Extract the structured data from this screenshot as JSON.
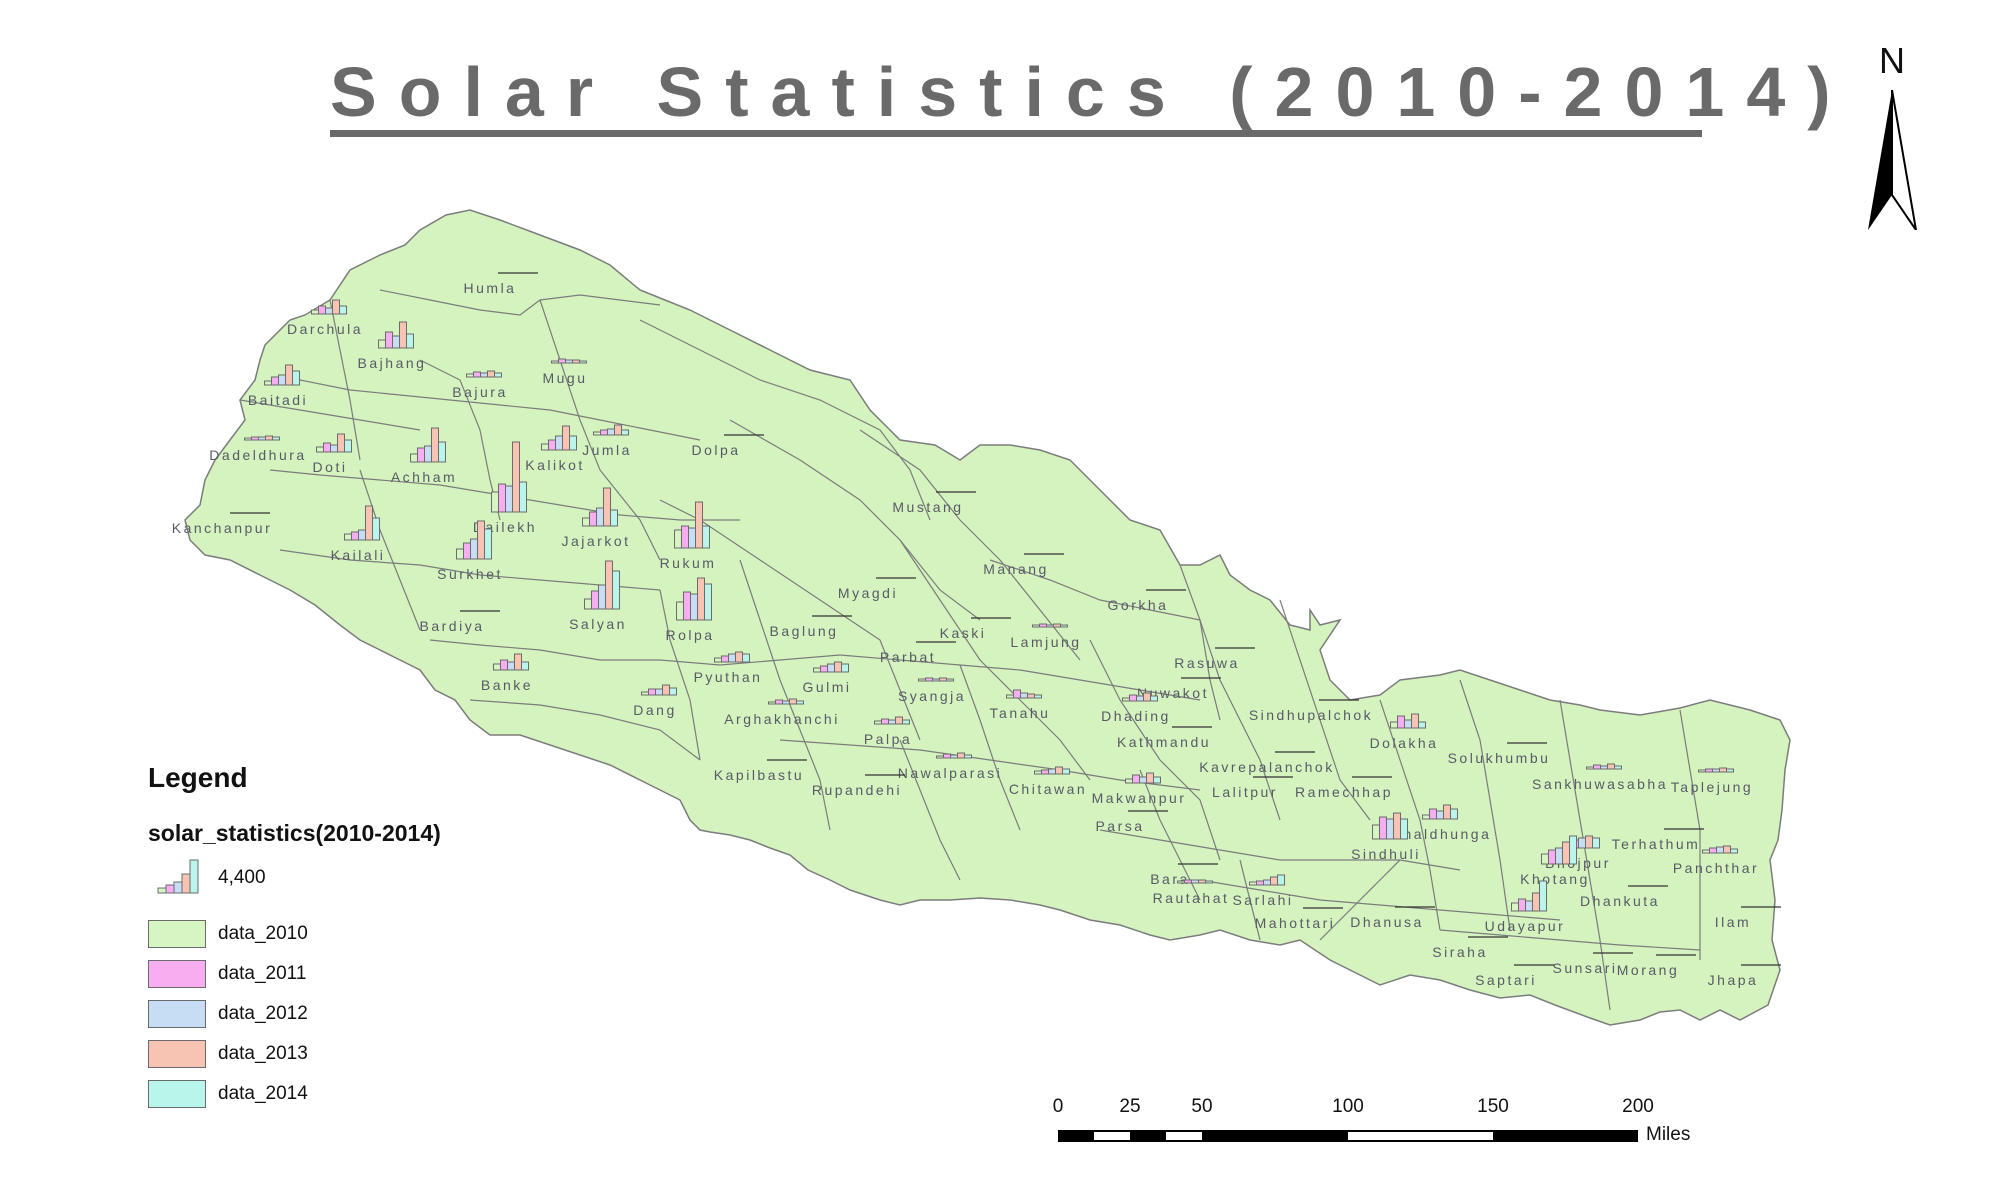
{
  "title": "Solar Statistics (2010-2014)",
  "north_arrow": {
    "label": "N",
    "icon": "north-arrow-icon"
  },
  "legend": {
    "title": "Legend",
    "subtitle": "solar_statistics(2010-2014)",
    "symbol_label": "4,400",
    "items": [
      {
        "label": "data_2010",
        "color": "#d6f5c3"
      },
      {
        "label": "data_2011",
        "color": "#f7aef1"
      },
      {
        "label": "data_2012",
        "color": "#c6ddf4"
      },
      {
        "label": "data_2013",
        "color": "#f7c4b3"
      },
      {
        "label": "data_2014",
        "color": "#b9f5ea"
      }
    ]
  },
  "scale": {
    "ticks": [
      "0",
      "25",
      "50",
      "100",
      "150",
      "200"
    ],
    "units": "Miles"
  },
  "colors": {
    "land": "#d4f3bf",
    "border": "#7c7c7c",
    "data_2010": "#d6f5c3",
    "data_2011": "#f7aef1",
    "data_2012": "#c6ddf4",
    "data_2013": "#f7c4b3",
    "data_2014": "#b9f5ea"
  },
  "districts": [
    "Humla",
    "Darchula",
    "Bajhang",
    "Mugu",
    "Baitadi",
    "Bajura",
    "Dolpa",
    "Jumla",
    "Dadeldhura",
    "Doti",
    "Achham",
    "Kalikot",
    "Kanchanpur",
    "Kailali",
    "Dailekh",
    "Jajarkot",
    "Rukum",
    "Mustang",
    "Surkhet",
    "Manang",
    "Myagdi",
    "Salyan",
    "Bardiya",
    "Rolpa",
    "Gorkha",
    "Baglung",
    "Kaski",
    "Lamjung",
    "Parbat",
    "Pyuthan",
    "Rasuwa",
    "Gulmi",
    "Banke",
    "Syangja",
    "Nuwakot",
    "Dang",
    "Tanahu",
    "Dhading",
    "Sindhupalchok",
    "Arghakhanchi",
    "Kathmandu",
    "Palpa",
    "Dolakha",
    "Solukhumbu",
    "Kavrepalanchok",
    "Kapilbastu",
    "Nawalparasi",
    "Sankhuwasabha",
    "Taplejung",
    "Rupandehi",
    "Chitawan",
    "Lalitpur",
    "Ramechhap",
    "Makwanpur",
    "Okhaldhunga",
    "Parsa",
    "Sindhuli",
    "Terhathum",
    "Bhojpur",
    "Panchthar",
    "Bara",
    "Khotang",
    "Rautahat",
    "Sarlahi",
    "Dhankuta",
    "Ilam",
    "Mahottari",
    "Dhanusa",
    "Udayapur",
    "Siraha",
    "Sunsari",
    "Morang",
    "Saptari",
    "Jhapa"
  ]
}
